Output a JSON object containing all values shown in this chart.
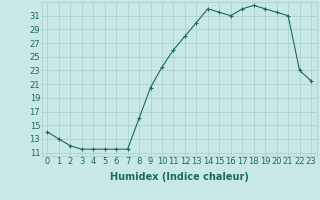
{
  "x": [
    0,
    1,
    2,
    3,
    4,
    5,
    6,
    7,
    8,
    9,
    10,
    11,
    12,
    13,
    14,
    15,
    16,
    17,
    18,
    19,
    20,
    21,
    22,
    23
  ],
  "y": [
    14,
    13,
    12,
    11.5,
    11.5,
    11.5,
    11.5,
    11.5,
    16,
    20.5,
    23.5,
    26,
    28,
    30,
    32,
    31.5,
    31,
    32,
    32.5,
    32,
    31.5,
    31,
    23,
    21.5
  ],
  "line_color": "#1a6b5a",
  "marker": "+",
  "bg_color": "#c8e8e8",
  "grid_color": "#aacccc",
  "xlabel": "Humidex (Indice chaleur)",
  "xlabel_fontsize": 7,
  "tick_fontsize": 6,
  "ylim": [
    10.5,
    33
  ],
  "yticks": [
    11,
    13,
    15,
    17,
    19,
    21,
    23,
    25,
    27,
    29,
    31
  ],
  "xticks": [
    0,
    1,
    2,
    3,
    4,
    5,
    6,
    7,
    8,
    9,
    10,
    11,
    12,
    13,
    14,
    15,
    16,
    17,
    18,
    19,
    20,
    21,
    22,
    23
  ]
}
